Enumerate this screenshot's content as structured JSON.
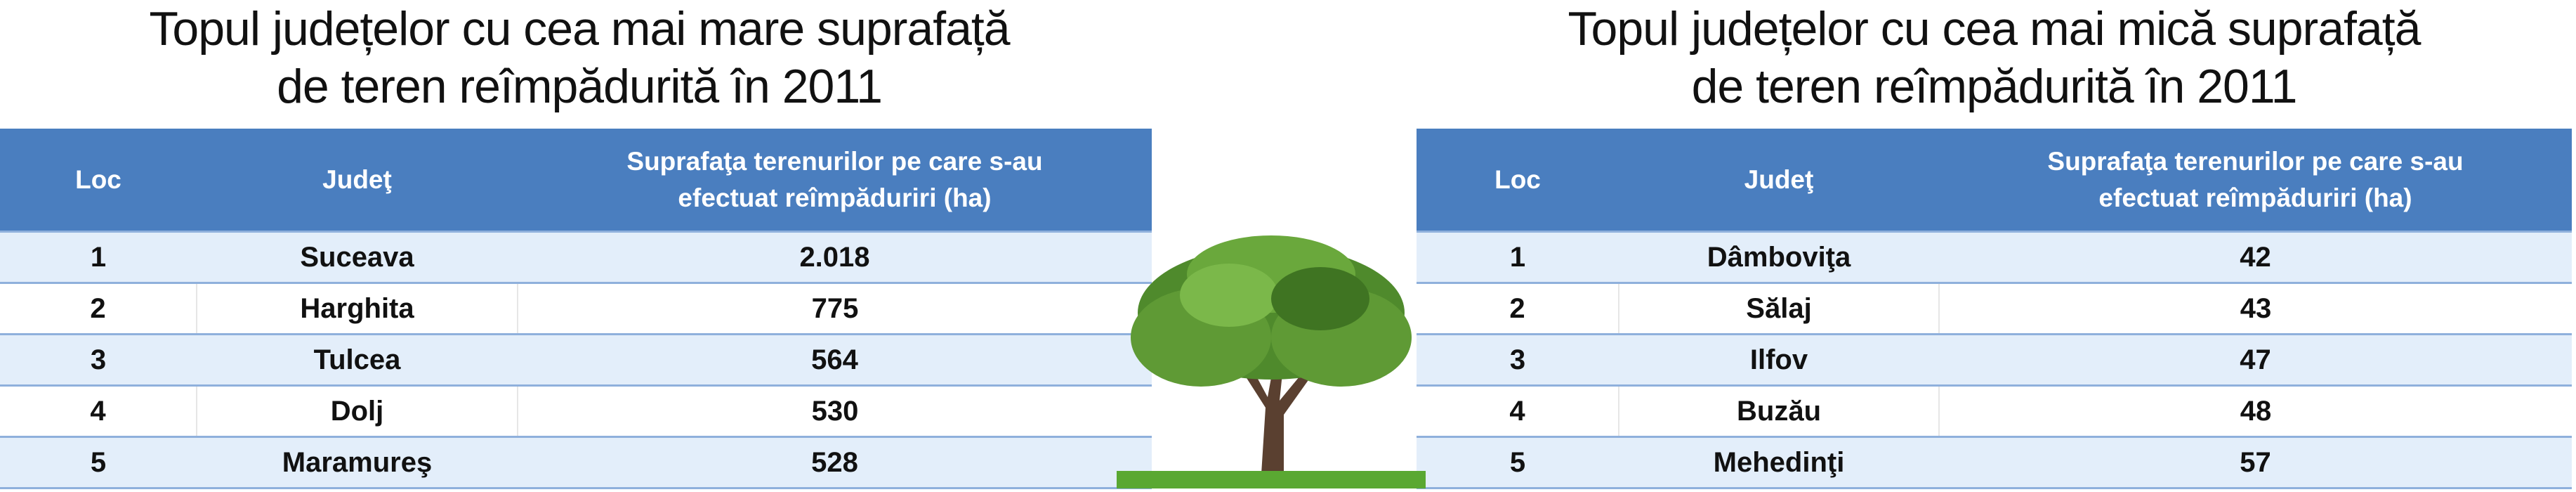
{
  "left": {
    "title_line1": "Topul județelor cu cea mai mare suprafață",
    "title_line2": "de teren reîmpădurită în 2011",
    "headers": [
      "Loc",
      "Judeţ",
      "Suprafaţa terenurilor pe care s-au",
      "efectuat reîmpăduriri (ha)"
    ],
    "rows": [
      {
        "loc": "1",
        "judet": "Suceava",
        "value": "2.018"
      },
      {
        "loc": "2",
        "judet": "Harghita",
        "value": "775"
      },
      {
        "loc": "3",
        "judet": "Tulcea",
        "value": "564"
      },
      {
        "loc": "4",
        "judet": "Dolj",
        "value": "530"
      },
      {
        "loc": "5",
        "judet": "Maramureş",
        "value": "528"
      }
    ]
  },
  "right": {
    "title_line1": "Topul județelor cu cea mai mică suprafață",
    "title_line2": "de teren reîmpădurită în 2011",
    "headers": [
      "Loc",
      "Judeţ",
      "Suprafaţa terenurilor pe care s-au",
      "efectuat reîmpăduriri (ha)"
    ],
    "rows": [
      {
        "loc": "1",
        "judet": "Dâmboviţa",
        "value": "42"
      },
      {
        "loc": "2",
        "judet": "Sălaj",
        "value": "43"
      },
      {
        "loc": "3",
        "judet": "Ilfov",
        "value": "47"
      },
      {
        "loc": "4",
        "judet": "Buzău",
        "value": "48"
      },
      {
        "loc": "5",
        "judet": "Mehedinţi",
        "value": "57"
      }
    ]
  },
  "colors": {
    "header": "#4a7ebf",
    "row_alt": "#e3eefa",
    "row_border": "#8fb0dc"
  },
  "decoration": "tree-image"
}
